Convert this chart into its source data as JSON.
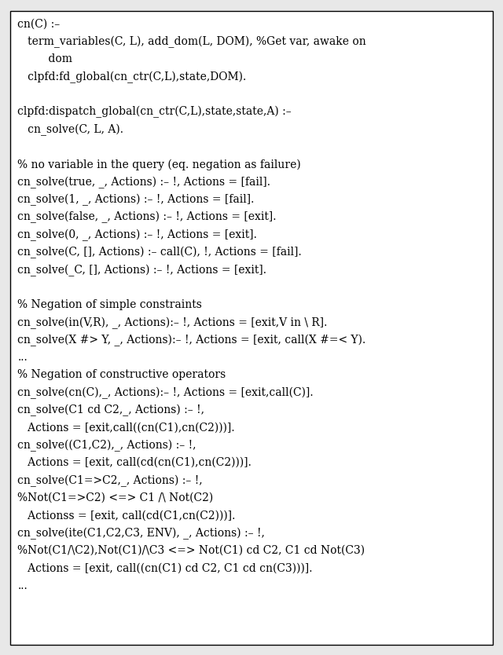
{
  "background_color": "#e8e8e8",
  "box_color": "#ffffff",
  "border_color": "#000000",
  "text_color": "#000000",
  "font_family": "DejaVu Serif",
  "font_size": 10.0,
  "figwidth": 6.4,
  "figheight": 8.34,
  "lines": [
    "cn(C) :–",
    "   term_variables(C, L), add_dom(L, DOM), %Get var, awake on",
    "         dom",
    "   clpfd:fd_global(cn_ctr(C,L),state,DOM).",
    "",
    "clpfd:dispatch_global(cn_ctr(C,L),state,state,A) :–",
    "   cn_solve(C, L, A).",
    "",
    "% no variable in the query (eq. negation as failure)",
    "cn_solve(true, _, Actions) :– !, Actions = [fail].",
    "cn_solve(1, _, Actions) :– !, Actions = [fail].",
    "cn_solve(false, _, Actions) :– !, Actions = [exit].",
    "cn_solve(0, _, Actions) :– !, Actions = [exit].",
    "cn_solve(C, [], Actions) :– call(C), !, Actions = [fail].",
    "cn_solve(_C, [], Actions) :– !, Actions = [exit].",
    "",
    "% Negation of simple constraints",
    "cn_solve(in(V,R), _, Actions):– !, Actions = [exit,V in \\ R].",
    "cn_solve(X #> Y, _, Actions):– !, Actions = [exit, call(X #=< Y).",
    "...",
    "% Negation of constructive operators",
    "cn_solve(cn(C),_, Actions):– !, Actions = [exit,call(C)].",
    "cn_solve(C1 cd C2,_, Actions) :– !,",
    "   Actions = [exit,call((cn(C1),cn(C2)))].",
    "cn_solve((C1,C2),_, Actions) :– !,",
    "   Actions = [exit, call(cd(cn(C1),cn(C2)))].",
    "cn_solve(C1=>C2,_, Actions) :– !,",
    "%Not(C1=>C2) <=> C1 /\\ Not(C2)",
    "   Actionss = [exit, call(cd(C1,cn(C2)))].",
    "cn_solve(ite(C1,C2,C3, ENV), _, Actions) :– !,",
    "%Not(C1/\\C2),Not(C1)/\\C3 <=> Not(C1) cd C2, C1 cd Not(C3)",
    "   Actions = [exit, call((cn(C1) cd C2, C1 cd cn(C3)))].",
    "..."
  ]
}
